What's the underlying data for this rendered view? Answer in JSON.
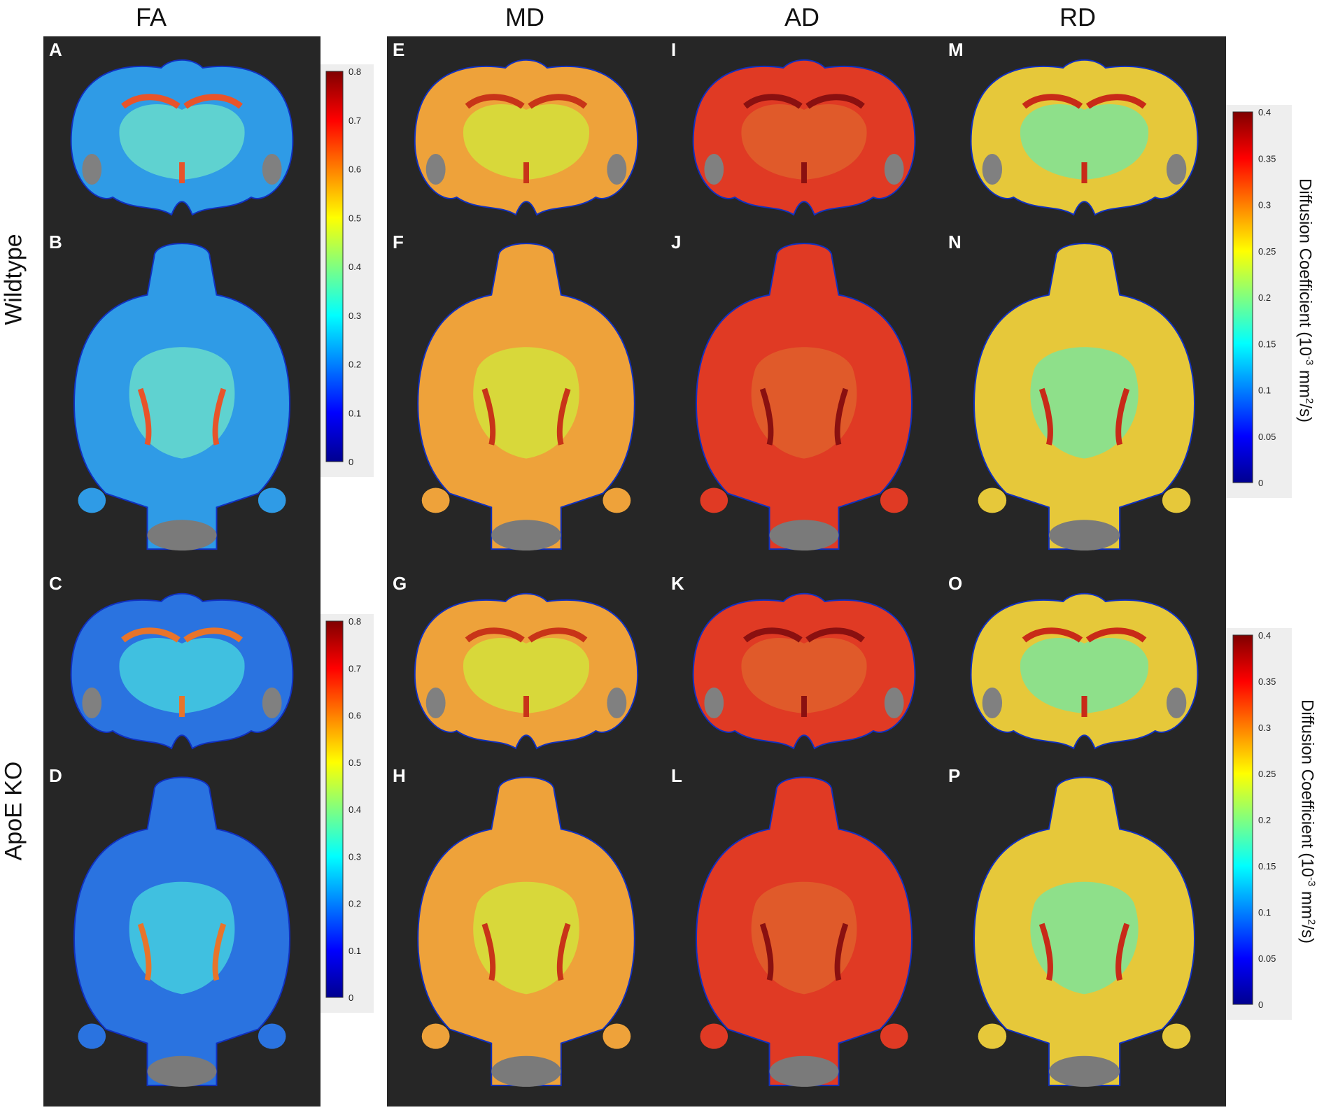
{
  "columns": {
    "fa": "FA",
    "md": "MD",
    "ad": "AD",
    "rd": "RD"
  },
  "rows": {
    "wildtype": "Wildtype",
    "apoe": "ApoE KO"
  },
  "panels": {
    "A": "A",
    "B": "B",
    "C": "C",
    "D": "D",
    "E": "E",
    "F": "F",
    "G": "G",
    "H": "H",
    "I": "I",
    "J": "J",
    "K": "K",
    "L": "L",
    "M": "M",
    "N": "N",
    "O": "O",
    "P": "P"
  },
  "colorbars": {
    "fa_ticks": [
      "0.8",
      "0.7",
      "0.6",
      "0.5",
      "0.4",
      "0.3",
      "0.2",
      "0.1",
      "0"
    ],
    "diff_ticks": [
      "0.4",
      "0.35",
      "0.3",
      "0.25",
      "0.2",
      "0.15",
      "0.1",
      "0.05",
      "0"
    ],
    "diff_title_pre": "Diffusion Coefficient (10",
    "diff_title_sup1": "-3",
    "diff_title_mid": " mm",
    "diff_title_sup2": "2",
    "diff_title_post": "/s)",
    "jet_colors": [
      "#00008f",
      "#0000ff",
      "#0080ff",
      "#00ffff",
      "#80ff80",
      "#ffff00",
      "#ff8000",
      "#ff0000",
      "#800000"
    ]
  },
  "map_colors": {
    "fa_wt": {
      "body": "#2f9be6",
      "inner": "#5fd2d0",
      "tract": "#e8542a"
    },
    "fa_ko": {
      "body": "#2a73e0",
      "inner": "#40c0e0",
      "tract": "#e8742a"
    },
    "md": {
      "body": "#eea23a",
      "inner": "#d8d83a",
      "tract": "#c83418"
    },
    "ad": {
      "body": "#e03a24",
      "inner": "#e05a2a",
      "tract": "#8a1010"
    },
    "rd": {
      "body": "#e6c83a",
      "inner": "#8ee08a",
      "tract": "#c82a18"
    }
  }
}
